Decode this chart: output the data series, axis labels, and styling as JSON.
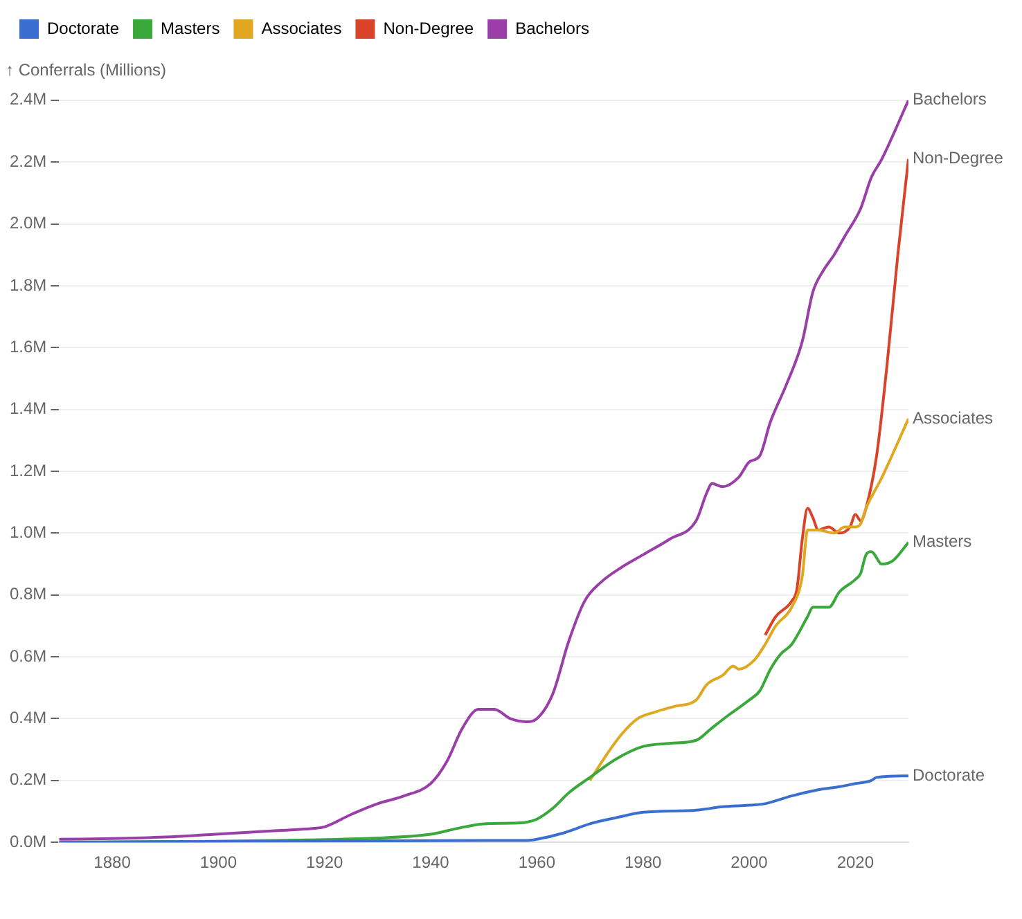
{
  "chart_data": {
    "type": "line",
    "ylabel": "↑ Conferrals (Millions)",
    "xlim": [
      1870,
      2030
    ],
    "xticks": [
      1880,
      1900,
      1920,
      1940,
      1960,
      1980,
      2000,
      2020
    ],
    "ylim": [
      0,
      2.4
    ],
    "yticks": [
      {
        "value": 0,
        "label": "0.0M"
      },
      {
        "value": 0.2,
        "label": "0.2M"
      },
      {
        "value": 0.4,
        "label": "0.4M"
      },
      {
        "value": 0.6,
        "label": "0.6M"
      },
      {
        "value": 0.8,
        "label": "0.8M"
      },
      {
        "value": 1.0,
        "label": "1.0M"
      },
      {
        "value": 1.2,
        "label": "1.2M"
      },
      {
        "value": 1.4,
        "label": "1.4M"
      },
      {
        "value": 1.6,
        "label": "1.6M"
      },
      {
        "value": 1.8,
        "label": "1.8M"
      },
      {
        "value": 2.0,
        "label": "2.0M"
      },
      {
        "value": 2.2,
        "label": "2.2M"
      },
      {
        "value": 2.4,
        "label": "2.4M"
      }
    ],
    "grid": "y",
    "legend": "top left",
    "marker": "none",
    "line_style": "solid",
    "series": [
      {
        "name": "Doctorate",
        "color": "#3a6fd0",
        "x": [
          1870,
          1950,
          1958,
          1960,
          1965,
          1970,
          1975,
          1980,
          1990,
          1995,
          2000,
          2003,
          2008,
          2013,
          2017,
          2020,
          2023,
          2024,
          2030
        ],
        "values": [
          0.0,
          0.006,
          0.006,
          0.01,
          0.03,
          0.06,
          0.08,
          0.097,
          0.104,
          0.115,
          0.12,
          0.125,
          0.15,
          0.17,
          0.18,
          0.19,
          0.2,
          0.21,
          0.215
        ]
      },
      {
        "name": "Masters",
        "color": "#3aa83a",
        "x": [
          1870,
          1930,
          1940,
          1945,
          1950,
          1955,
          1958,
          1960,
          1963,
          1966,
          1970,
          1975,
          1980,
          1985,
          1990,
          1993,
          1996,
          2000,
          2002,
          2004,
          2006,
          2008,
          2011,
          2012,
          2015,
          2017,
          2020,
          2021,
          2022,
          2023,
          2025,
          2027,
          2030
        ],
        "values": [
          0.0,
          0.014,
          0.026,
          0.045,
          0.06,
          0.062,
          0.065,
          0.075,
          0.11,
          0.16,
          0.21,
          0.27,
          0.31,
          0.32,
          0.33,
          0.37,
          0.41,
          0.46,
          0.49,
          0.56,
          0.61,
          0.64,
          0.73,
          0.76,
          0.76,
          0.81,
          0.85,
          0.87,
          0.93,
          0.94,
          0.9,
          0.91,
          0.97
        ]
      },
      {
        "name": "Associates",
        "color": "#e0a820",
        "x": [
          1970,
          1973,
          1976,
          1979,
          1982,
          1986,
          1990,
          1992,
          1995,
          1997,
          1998,
          2001,
          2003,
          2005,
          2008,
          2010,
          2011,
          2013,
          2016,
          2018,
          2020,
          2021,
          2022,
          2025,
          2030
        ],
        "values": [
          0.2,
          0.28,
          0.35,
          0.4,
          0.42,
          0.44,
          0.46,
          0.51,
          0.54,
          0.57,
          0.56,
          0.59,
          0.64,
          0.7,
          0.76,
          0.86,
          1.01,
          1.01,
          1.0,
          1.02,
          1.02,
          1.03,
          1.08,
          1.18,
          1.37
        ]
      },
      {
        "name": "Non-Degree",
        "color": "#d8432a",
        "x": [
          2003,
          2005,
          2008,
          2009,
          2010,
          2011,
          2012,
          2013,
          2015,
          2017,
          2019,
          2020,
          2021,
          2022,
          2024,
          2026,
          2028,
          2030
        ],
        "values": [
          0.67,
          0.73,
          0.78,
          0.82,
          0.98,
          1.08,
          1.05,
          1.01,
          1.02,
          1.0,
          1.02,
          1.06,
          1.04,
          1.08,
          1.25,
          1.55,
          1.9,
          2.21
        ]
      },
      {
        "name": "Bachelors",
        "color": "#9a3fa8",
        "x": [
          1870,
          1880,
          1890,
          1900,
          1910,
          1918,
          1920,
          1925,
          1930,
          1935,
          1940,
          1943,
          1946,
          1949,
          1952,
          1955,
          1958,
          1960,
          1963,
          1966,
          1969,
          1972,
          1976,
          1980,
          1985,
          1990,
          1992,
          1993,
          1995,
          1998,
          2000,
          2002,
          2004,
          2007,
          2010,
          2012,
          2014,
          2016,
          2018,
          2021,
          2023,
          2025,
          2030
        ],
        "values": [
          0.01,
          0.012,
          0.017,
          0.027,
          0.037,
          0.045,
          0.05,
          0.09,
          0.125,
          0.15,
          0.19,
          0.26,
          0.37,
          0.43,
          0.43,
          0.4,
          0.39,
          0.4,
          0.48,
          0.65,
          0.78,
          0.84,
          0.89,
          0.93,
          0.98,
          1.04,
          1.13,
          1.16,
          1.15,
          1.18,
          1.23,
          1.25,
          1.36,
          1.48,
          1.62,
          1.78,
          1.85,
          1.9,
          1.96,
          2.05,
          2.15,
          2.21,
          2.4
        ]
      }
    ]
  }
}
